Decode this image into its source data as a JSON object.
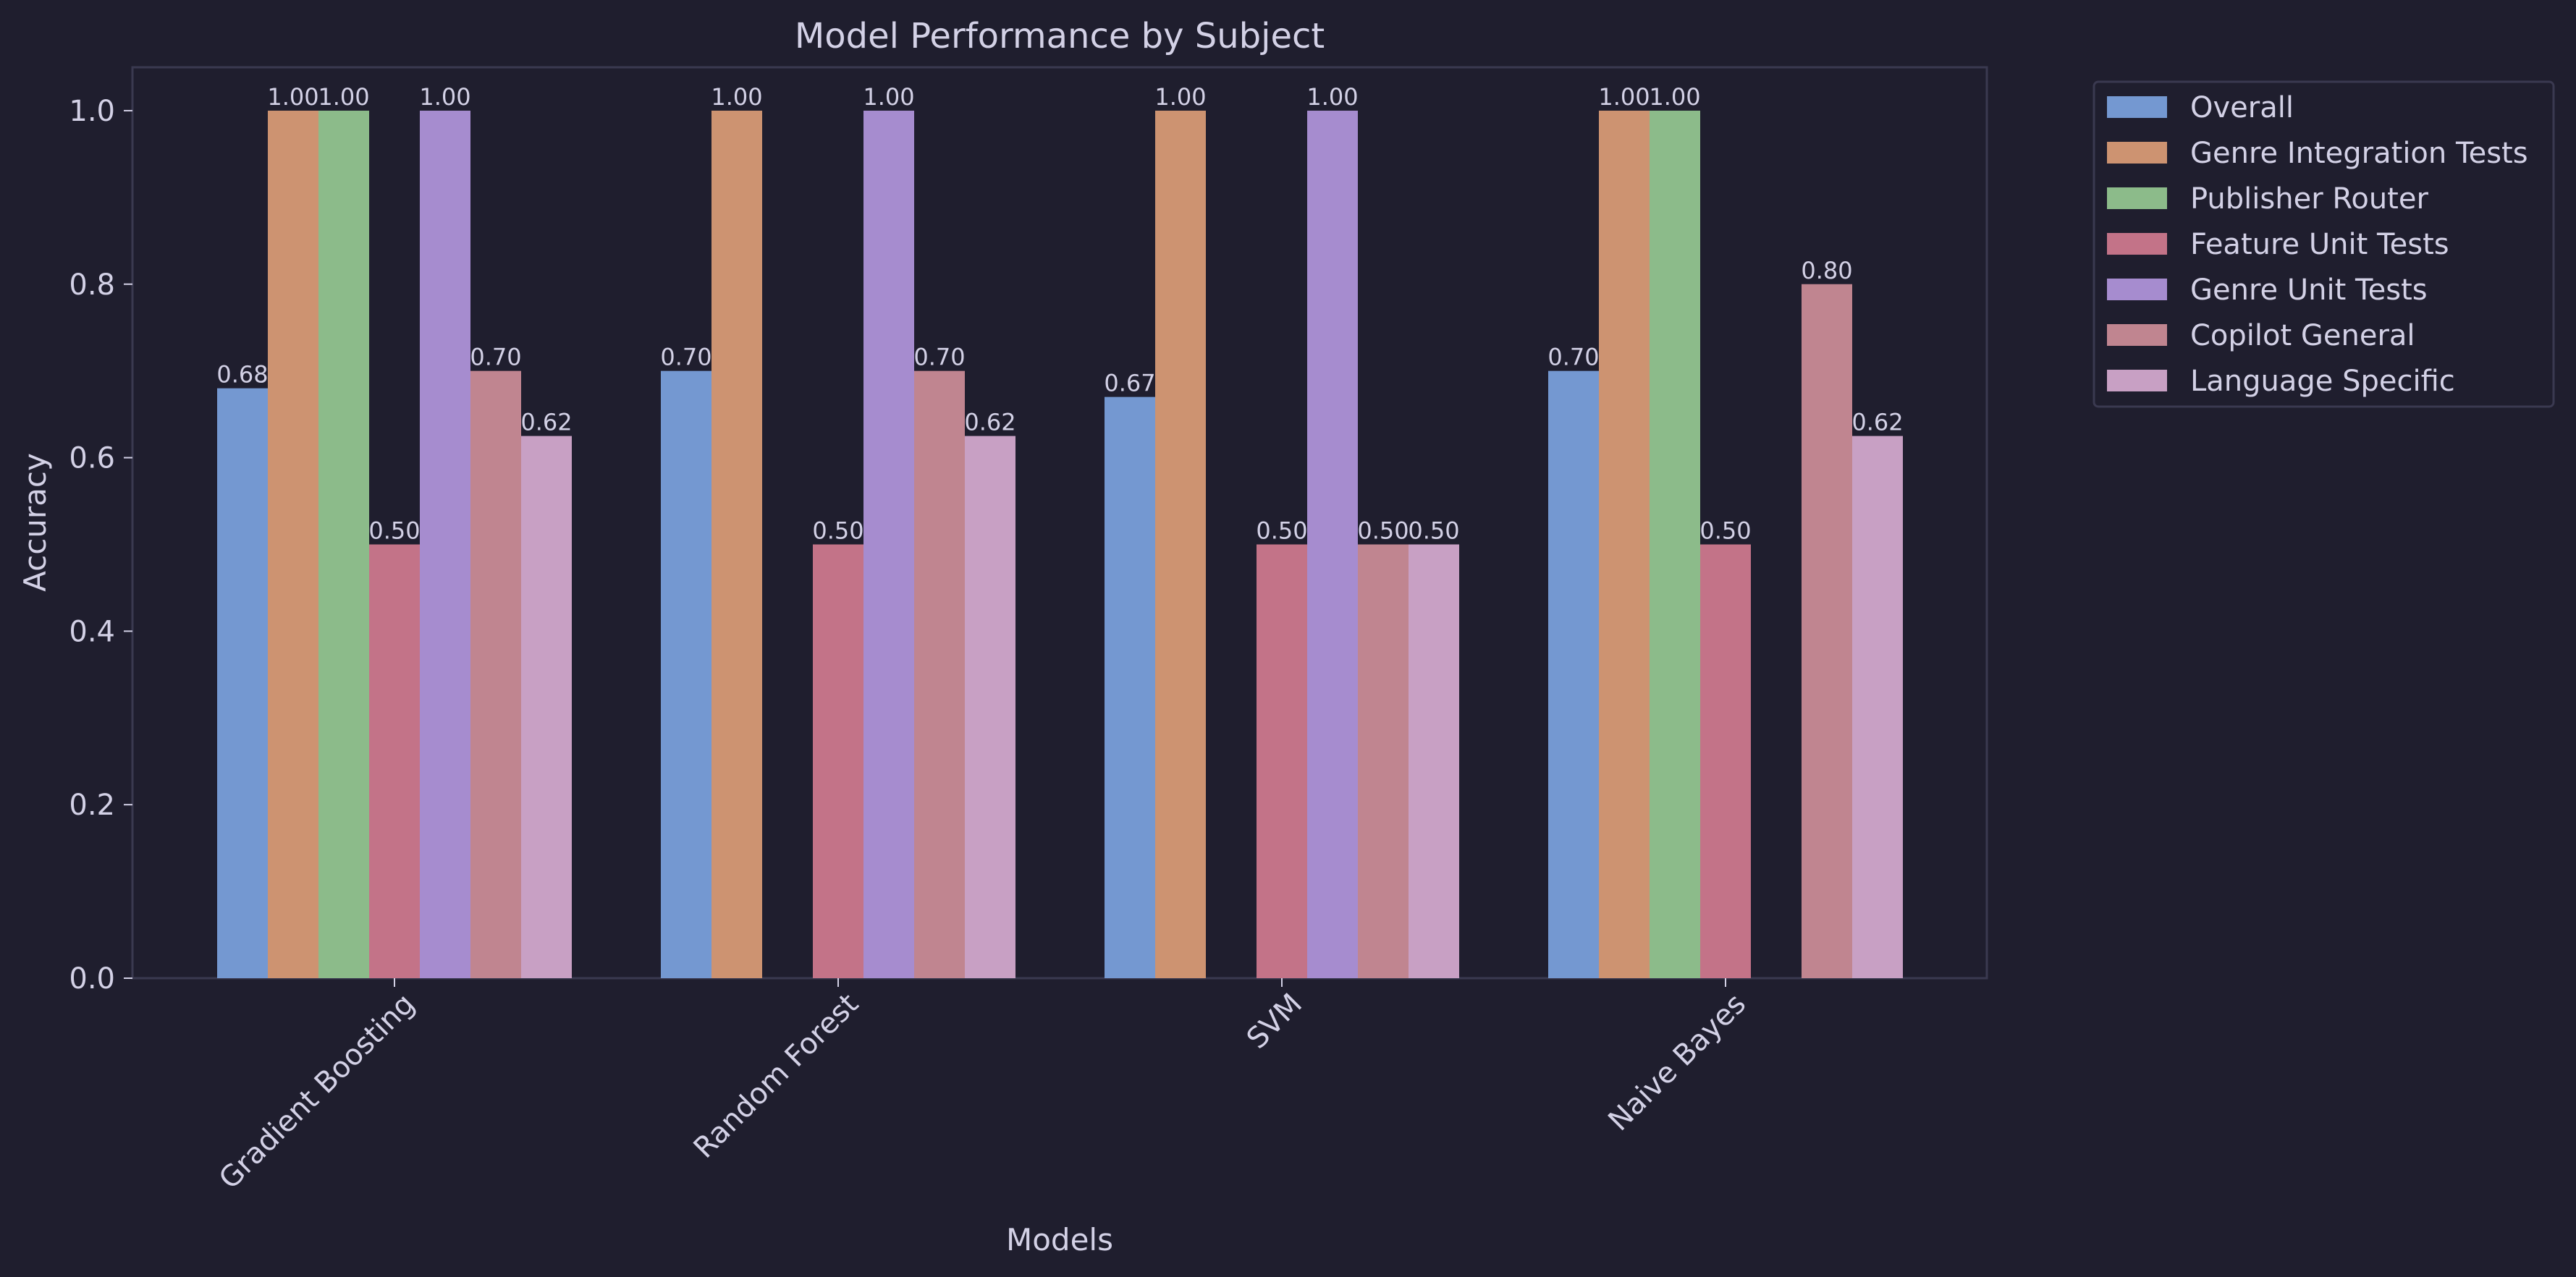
{
  "chart_data": {
    "type": "bar",
    "title": "Model Performance by Subject",
    "xlabel": "Models",
    "ylabel": "Accuracy",
    "ylim": [
      0,
      1.05
    ],
    "yticks": [
      "0.0",
      "0.2",
      "0.4",
      "0.6",
      "0.8",
      "1.0"
    ],
    "ytick_values": [
      0,
      0.2,
      0.4,
      0.6,
      0.8,
      1.0
    ],
    "categories": [
      "Gradient Boosting",
      "Random Forest",
      "SVM",
      "Naive Bayes"
    ],
    "series": [
      {
        "name": "Overall",
        "color": "#7498d1",
        "values": [
          0.68,
          0.7,
          0.67,
          0.7
        ]
      },
      {
        "name": "Genre Integration Tests",
        "color": "#cd9371",
        "values": [
          1.0,
          1.0,
          1.0,
          1.0
        ]
      },
      {
        "name": "Publisher Router",
        "color": "#8cbb8a",
        "values": [
          1.0,
          null,
          null,
          1.0
        ]
      },
      {
        "name": "Feature Unit Tests",
        "color": "#c37388",
        "values": [
          0.5,
          0.5,
          0.5,
          0.5
        ]
      },
      {
        "name": "Genre Unit Tests",
        "color": "#a68ccf",
        "values": [
          1.0,
          1.0,
          1.0,
          null
        ]
      },
      {
        "name": "Copilot General",
        "color": "#c08590",
        "values": [
          0.7,
          0.7,
          0.5,
          0.8
        ]
      },
      {
        "name": "Language Specific",
        "color": "#c8a0c4",
        "values": [
          0.625,
          0.625,
          0.5,
          0.625
        ]
      }
    ],
    "data_labels": [
      [
        "0.68",
        "0.70",
        "0.67",
        "0.70"
      ],
      [
        "1.00",
        "1.00",
        "1.00",
        "1.00"
      ],
      [
        "1.00",
        "",
        "",
        "1.00"
      ],
      [
        "0.50",
        "0.50",
        "0.50",
        "0.50"
      ],
      [
        "1.00",
        "1.00",
        "1.00",
        ""
      ],
      [
        "0.70",
        "0.70",
        "0.50",
        "0.80"
      ],
      [
        "0.62",
        "0.62",
        "0.50",
        "0.62"
      ]
    ],
    "grid": false,
    "legend": "outside-top-right"
  },
  "colors": {
    "background": "#1f1e2e",
    "axes_edge": "#3a3950",
    "text": "#d3d1e6"
  }
}
